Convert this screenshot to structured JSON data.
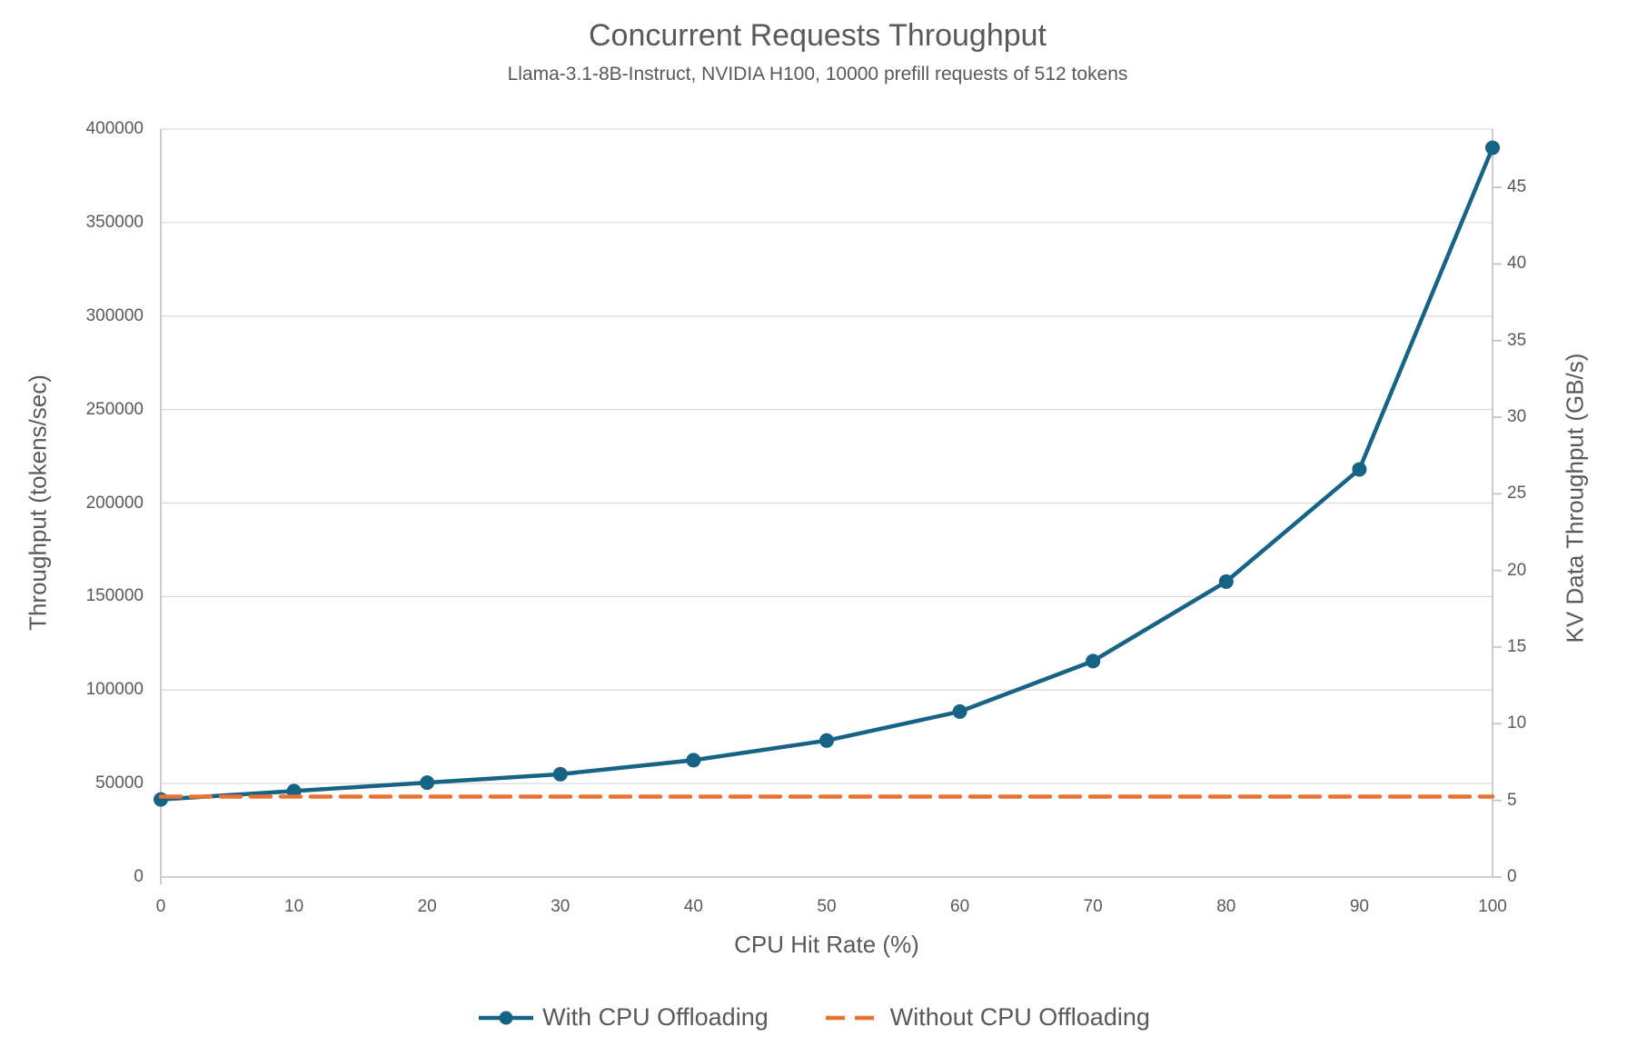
{
  "title": "Concurrent Requests Throughput",
  "subtitle": "Llama-3.1-8B-Instruct, NVIDIA H100, 10000 prefill requests of 512 tokens",
  "chart_data": {
    "type": "line",
    "title": "Concurrent Requests Throughput",
    "subtitle": "Llama-3.1-8B-Instruct, NVIDIA H100, 10000 prefill requests of 512 tokens",
    "xlabel": "CPU Hit Rate (%)",
    "ylabel_left": "Throughput (tokens/sec)",
    "ylabel_right": "KV Data Throughput (GB/s)",
    "x_min": 0,
    "x_max": 100,
    "x_ticks": [
      0,
      10,
      20,
      30,
      40,
      50,
      60,
      70,
      80,
      90,
      100
    ],
    "left_axis": {
      "min": 0,
      "max": 400000,
      "ticks": [
        0,
        50000,
        100000,
        150000,
        200000,
        250000,
        300000,
        350000,
        400000
      ]
    },
    "right_axis": {
      "min": 0,
      "max": 48.8,
      "ticks": [
        0,
        5,
        10,
        15,
        20,
        25,
        30,
        35,
        40,
        45
      ]
    },
    "grid": "horizontal",
    "legend_position": "bottom",
    "series": [
      {
        "name": "With CPU Offloading",
        "axis": "left",
        "style": "solid",
        "markers": "circle",
        "x": [
          0,
          10,
          20,
          30,
          40,
          50,
          60,
          70,
          80,
          90,
          100
        ],
        "values": [
          41500,
          46000,
          50500,
          55000,
          62500,
          73000,
          88500,
          115500,
          158000,
          218000,
          390000
        ]
      },
      {
        "name": "Without CPU Offloading",
        "axis": "left",
        "style": "dashed",
        "markers": "none",
        "x": [
          0,
          10,
          20,
          30,
          40,
          50,
          60,
          70,
          80,
          90,
          100
        ],
        "values": [
          43000,
          43000,
          43000,
          43000,
          43000,
          43000,
          43000,
          43000,
          43000,
          43000,
          43000
        ]
      }
    ]
  },
  "colors": {
    "background": "#FFFFFF",
    "text": "#595959",
    "gridline": "#D9D9D9",
    "axis_line": "#BFBFBF",
    "series_with": "#176385",
    "series_without": "#E97132"
  }
}
